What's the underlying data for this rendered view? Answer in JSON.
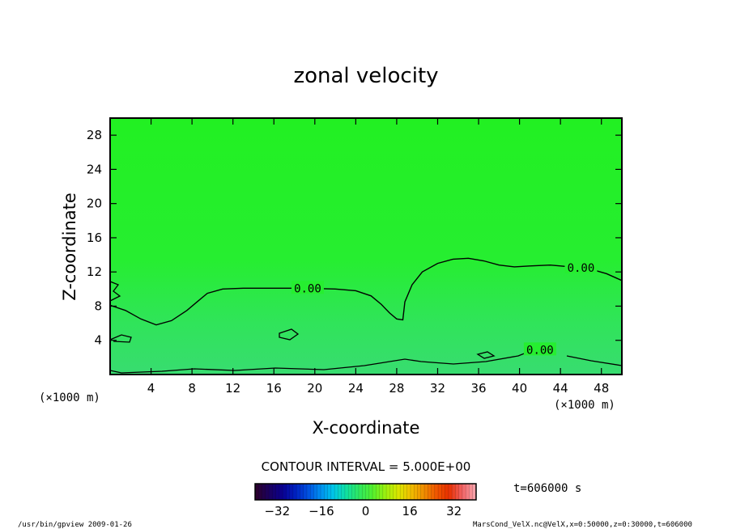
{
  "chart_data": {
    "type": "contour",
    "title": "zonal velocity",
    "xlabel": "X-coordinate",
    "ylabel": "Z-coordinate",
    "x_unit": "(×1000 m)",
    "y_unit": "(×1000 m)",
    "xlim": [
      0,
      50
    ],
    "ylim": [
      0,
      30
    ],
    "xticks": [
      4,
      8,
      12,
      16,
      20,
      24,
      28,
      32,
      36,
      40,
      44,
      48
    ],
    "yticks": [
      4,
      8,
      12,
      16,
      20,
      24,
      28
    ],
    "contour_interval_text": "CONTOUR INTERVAL = 5.000E+00",
    "contour_label": "0.00",
    "zero_contour": [
      [
        0,
        8.1
      ],
      [
        1.5,
        7.5
      ],
      [
        3,
        6.5
      ],
      [
        4.5,
        5.8
      ],
      [
        6,
        6.3
      ],
      [
        7.5,
        7.5
      ],
      [
        8.5,
        8.5
      ],
      [
        9.5,
        9.5
      ],
      [
        11,
        10
      ],
      [
        13,
        10.1
      ],
      [
        16,
        10.1
      ],
      [
        19,
        10.1
      ],
      [
        22,
        10
      ],
      [
        24,
        9.8
      ],
      [
        25.5,
        9.2
      ],
      [
        26.5,
        8.2
      ],
      [
        27.3,
        7.2
      ],
      [
        28,
        6.5
      ],
      [
        28.6,
        6.4
      ],
      [
        28.8,
        8.5
      ],
      [
        29.5,
        10.5
      ],
      [
        30.5,
        12
      ],
      [
        32,
        13
      ],
      [
        33.5,
        13.5
      ],
      [
        35,
        13.6
      ],
      [
        36.5,
        13.3
      ],
      [
        38,
        12.8
      ],
      [
        39.5,
        12.6
      ],
      [
        41,
        12.7
      ],
      [
        43,
        12.8
      ],
      [
        45,
        12.6
      ],
      [
        47,
        12.3
      ],
      [
        48.5,
        11.8
      ],
      [
        50,
        11
      ]
    ],
    "colorbar": {
      "ticks": [
        -32,
        -16,
        0,
        16,
        32
      ],
      "range": [
        -40,
        40
      ],
      "colors": [
        "#2a0030",
        "#1a0060",
        "#0a0090",
        "#0020c0",
        "#0050e0",
        "#0090f0",
        "#00c8e8",
        "#10e0a0",
        "#30e860",
        "#50f030",
        "#98f010",
        "#d8e800",
        "#f0c000",
        "#f09000",
        "#f05800",
        "#e83000",
        "#f06060",
        "#f8a0a8"
      ]
    },
    "time_label": "t=606000 s"
  },
  "footer": {
    "left": "/usr/bin/gpview   2009-01-26",
    "right": "MarsCond_VelX.nc@VelX,x=0:50000,z=0:30000,t=606000"
  }
}
